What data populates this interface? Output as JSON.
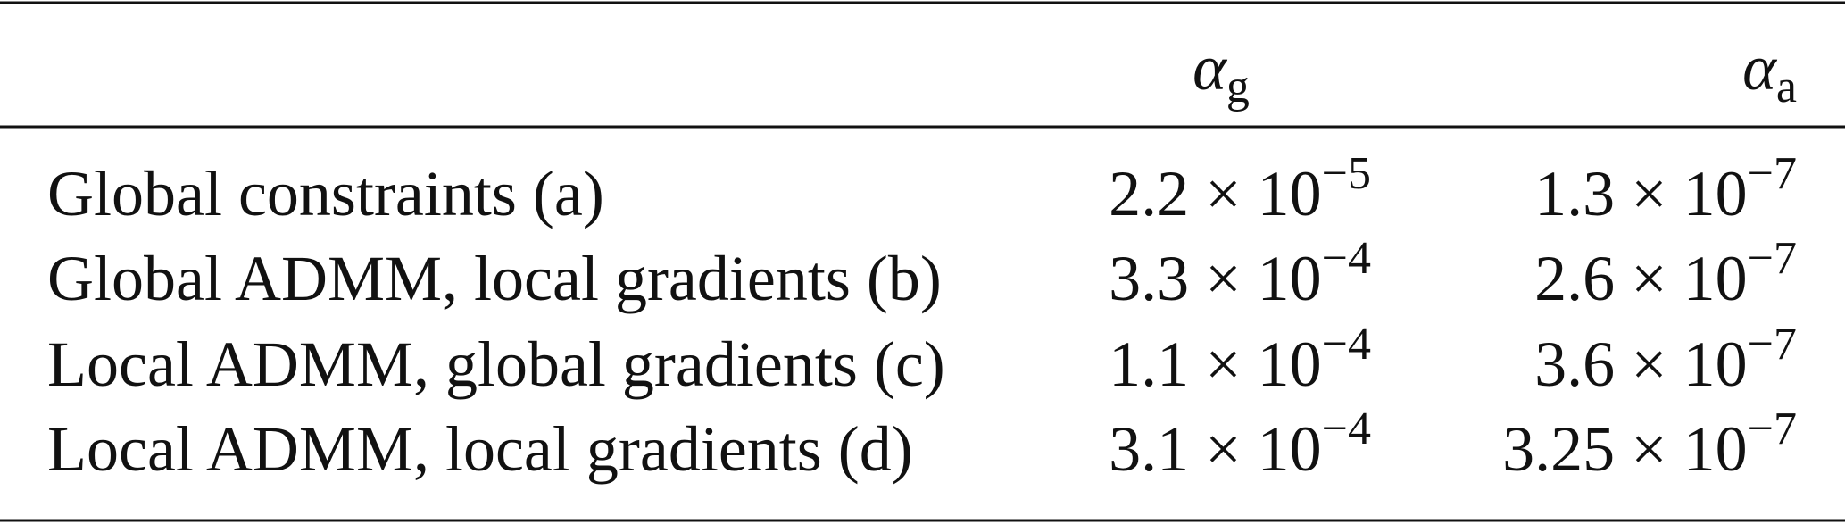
{
  "table": {
    "header": [
      {
        "symbol": "α",
        "subscript": "g"
      },
      {
        "symbol": "α",
        "subscript": "a"
      }
    ],
    "rows": [
      {
        "label": "Global constraints (a)",
        "cells": [
          {
            "mantissa": "2.2 × 10",
            "exponent": "−5"
          },
          {
            "mantissa": "1.3 × 10",
            "exponent": "−7"
          }
        ]
      },
      {
        "label": "Global ADMM, local gradients (b)",
        "cells": [
          {
            "mantissa": "3.3 × 10",
            "exponent": "−4"
          },
          {
            "mantissa": "2.6 × 10",
            "exponent": "−7"
          }
        ]
      },
      {
        "label": "Local ADMM, global gradients (c)",
        "cells": [
          {
            "mantissa": "1.1 × 10",
            "exponent": "−4"
          },
          {
            "mantissa": "3.6 × 10",
            "exponent": "−7"
          }
        ]
      },
      {
        "label": "Local ADMM, local gradients (d)",
        "cells": [
          {
            "mantissa": "3.1 × 10",
            "exponent": "−4"
          },
          {
            "mantissa": "3.25 × 10",
            "exponent": "−7"
          }
        ]
      }
    ]
  }
}
